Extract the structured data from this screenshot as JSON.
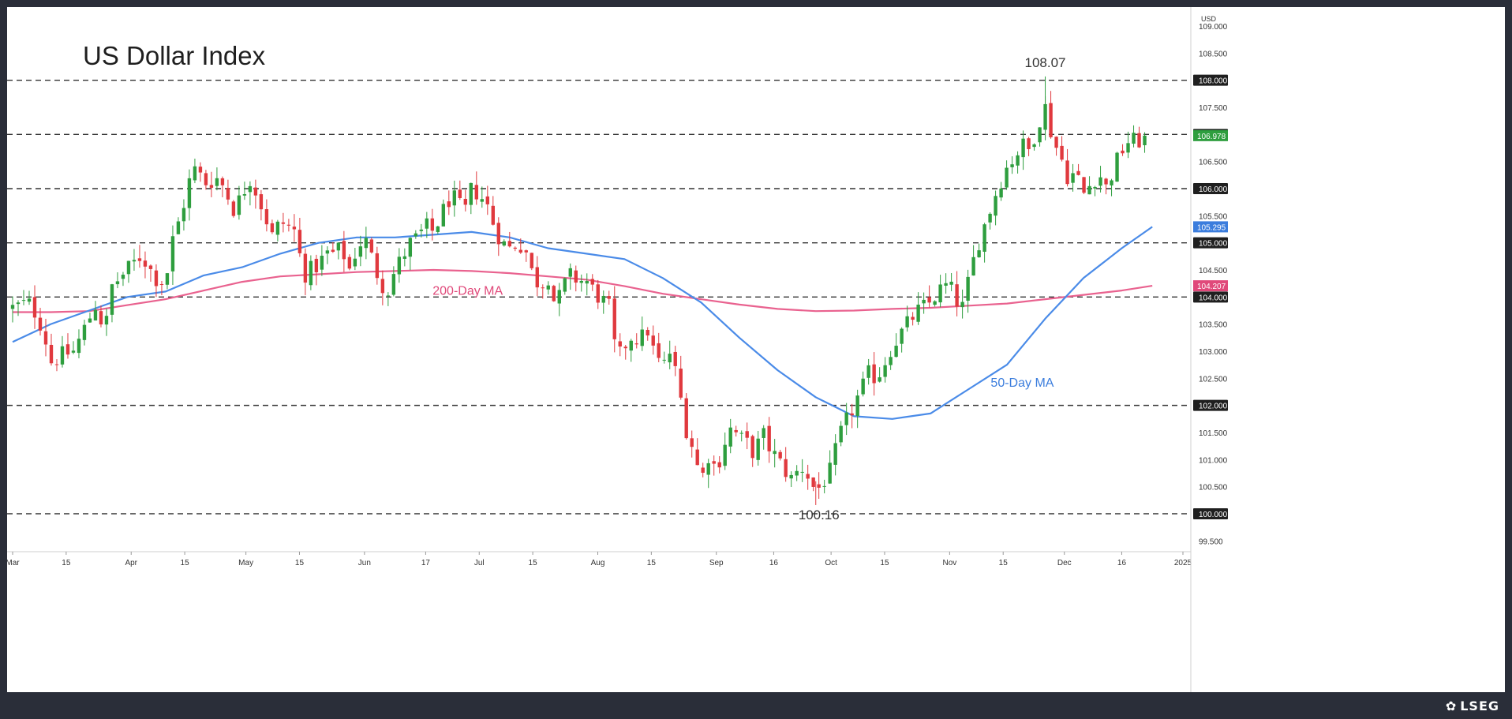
{
  "chart_data": {
    "type": "candlestick",
    "title": "US Dollar Index",
    "currency": "USD",
    "annotations": {
      "high": {
        "label": "108.07",
        "value": 108.07
      },
      "low": {
        "label": "100.16",
        "value": 100.16
      },
      "ma200_label": "200-Day MA",
      "ma50_label": "50-Day MA"
    },
    "ylim": [
      99.3,
      109.35
    ],
    "y_ticks": [
      "109.000",
      "108.500",
      "108.000",
      "107.500",
      "107.000",
      "106.500",
      "106.000",
      "105.500",
      "105.000",
      "104.500",
      "104.000",
      "103.500",
      "103.000",
      "102.500",
      "102.000",
      "101.500",
      "101.000",
      "100.500",
      "100.000",
      "99.500"
    ],
    "highlight_ticks": [
      108.0,
      107.0,
      106.0,
      105.0,
      104.0,
      102.0,
      100.0
    ],
    "dashed_levels": [
      108.0,
      107.0,
      106.0,
      105.0,
      104.0,
      102.0,
      100.0
    ],
    "price_labels": [
      {
        "label": "106.978",
        "value": 106.978,
        "color": "#2e9e3e"
      },
      {
        "label": "105.295",
        "value": 105.295,
        "color": "#3b7ddd"
      },
      {
        "label": "104.207",
        "value": 104.207,
        "color": "#e0497a"
      }
    ],
    "x_ticks": [
      {
        "label": "Mar",
        "day": 0
      },
      {
        "label": "15",
        "day": 14
      },
      {
        "label": "Apr",
        "day": 31
      },
      {
        "label": "15",
        "day": 45
      },
      {
        "label": "May",
        "day": 61
      },
      {
        "label": "15",
        "day": 75
      },
      {
        "label": "Jun",
        "day": 92
      },
      {
        "label": "17",
        "day": 108
      },
      {
        "label": "Jul",
        "day": 122
      },
      {
        "label": "15",
        "day": 136
      },
      {
        "label": "Aug",
        "day": 153
      },
      {
        "label": "15",
        "day": 167
      },
      {
        "label": "Sep",
        "day": 184
      },
      {
        "label": "16",
        "day": 199
      },
      {
        "label": "Oct",
        "day": 214
      },
      {
        "label": "15",
        "day": 228
      },
      {
        "label": "Nov",
        "day": 245
      },
      {
        "label": "15",
        "day": 259
      },
      {
        "label": "Dec",
        "day": 275
      },
      {
        "label": "16",
        "day": 290
      },
      {
        "label": "2025",
        "day": 306
      }
    ],
    "close_path": [
      [
        0,
        103.8
      ],
      [
        4,
        103.9
      ],
      [
        6,
        103.7
      ],
      [
        8,
        103.4
      ],
      [
        10,
        102.8
      ],
      [
        12,
        102.9
      ],
      [
        16,
        103.0
      ],
      [
        18,
        103.3
      ],
      [
        20,
        103.6
      ],
      [
        22,
        103.9
      ],
      [
        24,
        103.3
      ],
      [
        26,
        104.2
      ],
      [
        30,
        104.5
      ],
      [
        34,
        104.8
      ],
      [
        35,
        104.6
      ],
      [
        38,
        104.3
      ],
      [
        40,
        104.3
      ],
      [
        42,
        105.1
      ],
      [
        44,
        105.5
      ],
      [
        46,
        106.1
      ],
      [
        48,
        106.4
      ],
      [
        50,
        106.1
      ],
      [
        54,
        106.2
      ],
      [
        56,
        105.9
      ],
      [
        58,
        105.6
      ],
      [
        60,
        105.9
      ],
      [
        62,
        106.2
      ],
      [
        64,
        105.9
      ],
      [
        66,
        105.5
      ],
      [
        68,
        105.1
      ],
      [
        70,
        105.4
      ],
      [
        74,
        105.2
      ],
      [
        76,
        104.4
      ],
      [
        78,
        104.5
      ],
      [
        80,
        104.6
      ],
      [
        82,
        104.8
      ],
      [
        84,
        104.8
      ],
      [
        86,
        104.9
      ],
      [
        88,
        104.5
      ],
      [
        90,
        104.9
      ],
      [
        92,
        105.1
      ],
      [
        96,
        104.3
      ],
      [
        98,
        104.1
      ],
      [
        100,
        104.5
      ],
      [
        104,
        105.0
      ],
      [
        106,
        105.1
      ],
      [
        108,
        105.3
      ],
      [
        110,
        105.2
      ],
      [
        112,
        105.5
      ],
      [
        114,
        105.8
      ],
      [
        116,
        105.8
      ],
      [
        118,
        105.5
      ],
      [
        120,
        106.0
      ],
      [
        122,
        105.9
      ],
      [
        124,
        105.7
      ],
      [
        126,
        105.3
      ],
      [
        128,
        105.0
      ],
      [
        130,
        104.9
      ],
      [
        132,
        105.0
      ],
      [
        134,
        104.9
      ],
      [
        136,
        104.4
      ],
      [
        138,
        104.2
      ],
      [
        140,
        104.4
      ],
      [
        142,
        103.8
      ],
      [
        144,
        104.2
      ],
      [
        146,
        104.4
      ],
      [
        148,
        104.3
      ],
      [
        150,
        104.3
      ],
      [
        152,
        104.1
      ],
      [
        156,
        103.8
      ],
      [
        158,
        102.8
      ],
      [
        160,
        103.1
      ],
      [
        162,
        103.3
      ],
      [
        164,
        103.2
      ],
      [
        166,
        103.4
      ],
      [
        168,
        102.9
      ],
      [
        170,
        102.7
      ],
      [
        172,
        103.0
      ],
      [
        174,
        102.4
      ],
      [
        176,
        101.6
      ],
      [
        178,
        101.2
      ],
      [
        180,
        100.6
      ],
      [
        182,
        101.1
      ],
      [
        184,
        100.8
      ],
      [
        186,
        101.3
      ],
      [
        188,
        101.6
      ],
      [
        190,
        101.4
      ],
      [
        192,
        101.3
      ],
      [
        194,
        101.1
      ],
      [
        196,
        101.5
      ],
      [
        198,
        101.2
      ],
      [
        200,
        101.0
      ],
      [
        202,
        100.8
      ],
      [
        204,
        100.6
      ],
      [
        206,
        100.9
      ],
      [
        208,
        100.7
      ],
      [
        210,
        100.4
      ],
      [
        212,
        100.6
      ],
      [
        214,
        100.8
      ],
      [
        216,
        101.4
      ],
      [
        218,
        101.7
      ],
      [
        220,
        102.0
      ],
      [
        222,
        102.3
      ],
      [
        224,
        102.6
      ],
      [
        226,
        102.5
      ],
      [
        228,
        102.8
      ],
      [
        230,
        103.1
      ],
      [
        232,
        103.3
      ],
      [
        234,
        103.5
      ],
      [
        236,
        103.7
      ],
      [
        238,
        103.8
      ],
      [
        240,
        103.9
      ],
      [
        242,
        104.1
      ],
      [
        244,
        104.2
      ],
      [
        246,
        104.1
      ],
      [
        248,
        103.7
      ],
      [
        250,
        104.3
      ],
      [
        252,
        104.9
      ],
      [
        254,
        105.3
      ],
      [
        256,
        105.7
      ],
      [
        258,
        106.1
      ],
      [
        260,
        106.4
      ],
      [
        262,
        106.6
      ],
      [
        264,
        106.8
      ],
      [
        266,
        106.7
      ],
      [
        268,
        107.2
      ],
      [
        270,
        107.5
      ],
      [
        272,
        106.9
      ],
      [
        274,
        106.6
      ],
      [
        276,
        106.2
      ],
      [
        278,
        106.3
      ],
      [
        280,
        105.9
      ],
      [
        282,
        106.1
      ],
      [
        284,
        106.3
      ],
      [
        286,
        106.0
      ],
      [
        288,
        106.4
      ],
      [
        290,
        106.7
      ],
      [
        292,
        106.9
      ],
      [
        294,
        106.85
      ],
      [
        296,
        106.978
      ]
    ],
    "ma200_path": [
      [
        0,
        103.72
      ],
      [
        10,
        103.72
      ],
      [
        20,
        103.74
      ],
      [
        30,
        103.85
      ],
      [
        40,
        103.96
      ],
      [
        50,
        104.12
      ],
      [
        60,
        104.28
      ],
      [
        70,
        104.38
      ],
      [
        80,
        104.42
      ],
      [
        90,
        104.46
      ],
      [
        100,
        104.48
      ],
      [
        110,
        104.5
      ],
      [
        120,
        104.48
      ],
      [
        130,
        104.44
      ],
      [
        140,
        104.38
      ],
      [
        150,
        104.32
      ],
      [
        160,
        104.2
      ],
      [
        170,
        104.06
      ],
      [
        180,
        103.96
      ],
      [
        190,
        103.86
      ],
      [
        200,
        103.78
      ],
      [
        210,
        103.74
      ],
      [
        220,
        103.75
      ],
      [
        230,
        103.78
      ],
      [
        240,
        103.8
      ],
      [
        250,
        103.84
      ],
      [
        260,
        103.88
      ],
      [
        270,
        103.96
      ],
      [
        280,
        104.04
      ],
      [
        290,
        104.12
      ],
      [
        298,
        104.207
      ]
    ],
    "ma50_path": [
      [
        0,
        103.17
      ],
      [
        10,
        103.5
      ],
      [
        20,
        103.75
      ],
      [
        30,
        104.0
      ],
      [
        40,
        104.1
      ],
      [
        50,
        104.4
      ],
      [
        60,
        104.55
      ],
      [
        70,
        104.8
      ],
      [
        80,
        105.0
      ],
      [
        90,
        105.1
      ],
      [
        100,
        105.1
      ],
      [
        110,
        105.15
      ],
      [
        120,
        105.2
      ],
      [
        130,
        105.1
      ],
      [
        140,
        104.9
      ],
      [
        150,
        104.8
      ],
      [
        160,
        104.7
      ],
      [
        170,
        104.35
      ],
      [
        180,
        103.9
      ],
      [
        190,
        103.25
      ],
      [
        200,
        102.65
      ],
      [
        210,
        102.15
      ],
      [
        220,
        101.8
      ],
      [
        230,
        101.75
      ],
      [
        240,
        101.85
      ],
      [
        250,
        102.3
      ],
      [
        260,
        102.75
      ],
      [
        270,
        103.6
      ],
      [
        280,
        104.35
      ],
      [
        290,
        104.9
      ],
      [
        298,
        105.295
      ]
    ]
  }
}
